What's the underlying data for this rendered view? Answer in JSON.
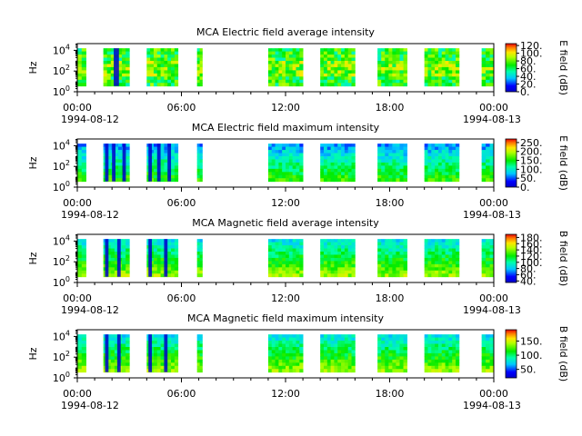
{
  "chart_data": [
    {
      "type": "heatmap",
      "title": "MCA  Electric field average intensity",
      "ylabel": "Hz",
      "y_scale": "log",
      "y_ticks": [
        {
          "pow": 0
        },
        {
          "pow": 2
        },
        {
          "pow": 4
        }
      ],
      "y_tick_base": "10",
      "x_ticks": [
        "00:00",
        "06:00",
        "12:00",
        "18:00",
        "00:00"
      ],
      "x_start_date": "1994-08-12",
      "x_end_date": "1994-08-13",
      "colorbar_label": "E field (dB)",
      "colorbar_ticks": [
        "0.",
        "20.",
        "40.",
        "60.",
        "80.",
        "100.",
        "120."
      ],
      "colorbar_range": [
        0,
        125
      ],
      "colormap": "rainbow (blue-cyan-green-yellow-red)",
      "data_intervals_hours": [
        [
          0.0,
          0.5
        ],
        [
          1.5,
          3.0
        ],
        [
          4.0,
          5.8
        ],
        [
          6.9,
          7.2
        ],
        [
          11.0,
          13.0
        ],
        [
          14.0,
          16.0
        ],
        [
          17.3,
          19.0
        ],
        [
          20.0,
          22.0
        ],
        [
          23.3,
          24.0
        ]
      ],
      "base_level": 0.55,
      "spike_intervals_hours": [
        [
          2.1,
          2.4
        ]
      ],
      "spike_color": "#0000cc"
    },
    {
      "type": "heatmap",
      "title": "MCA  Electric field maximum intensity",
      "ylabel": "Hz",
      "y_scale": "log",
      "y_ticks": [
        {
          "pow": 0
        },
        {
          "pow": 2
        },
        {
          "pow": 4
        }
      ],
      "y_tick_base": "10",
      "x_ticks": [
        "00:00",
        "06:00",
        "12:00",
        "18:00",
        "00:00"
      ],
      "x_start_date": "1994-08-12",
      "x_end_date": "1994-08-13",
      "colorbar_label": "E field (dB)",
      "colorbar_ticks": [
        "0.",
        "50.",
        "100.",
        "150.",
        "200.",
        "250."
      ],
      "colorbar_range": [
        0,
        270
      ],
      "colormap": "rainbow (blue-cyan-green-yellow-red)",
      "data_intervals_hours": [
        [
          0.0,
          0.5
        ],
        [
          1.5,
          3.0
        ],
        [
          4.0,
          5.8
        ],
        [
          6.9,
          7.2
        ],
        [
          11.0,
          13.0
        ],
        [
          14.0,
          16.0
        ],
        [
          17.3,
          19.0
        ],
        [
          20.0,
          22.0
        ],
        [
          23.3,
          24.0
        ]
      ],
      "base_level": 0.4,
      "spike_intervals_hours": [
        [
          1.6,
          1.8
        ],
        [
          2.0,
          2.2
        ],
        [
          2.6,
          2.8
        ],
        [
          4.1,
          4.3
        ],
        [
          4.6,
          4.8
        ],
        [
          5.2,
          5.4
        ]
      ],
      "spike_color": "#0000cc"
    },
    {
      "type": "heatmap",
      "title": "MCA  Magnetic field average intensity",
      "ylabel": "Hz",
      "y_scale": "log",
      "y_ticks": [
        {
          "pow": 0
        },
        {
          "pow": 2
        },
        {
          "pow": 4
        }
      ],
      "y_tick_base": "10",
      "x_ticks": [
        "00:00",
        "06:00",
        "12:00",
        "18:00",
        "00:00"
      ],
      "x_start_date": "1994-08-12",
      "x_end_date": "1994-08-13",
      "colorbar_label": "B field (dB)",
      "colorbar_ticks": [
        "40.",
        "60.",
        "80.",
        "100.",
        "120.",
        "140.",
        "160.",
        "180."
      ],
      "colorbar_range": [
        35,
        190
      ],
      "colormap": "rainbow (blue-cyan-green-yellow-red)",
      "data_intervals_hours": [
        [
          0.0,
          0.5
        ],
        [
          1.5,
          3.0
        ],
        [
          4.0,
          5.8
        ],
        [
          6.9,
          7.2
        ],
        [
          11.0,
          13.0
        ],
        [
          14.0,
          16.0
        ],
        [
          17.3,
          19.0
        ],
        [
          20.0,
          22.0
        ],
        [
          23.3,
          24.0
        ]
      ],
      "base_level": 0.5,
      "spike_intervals_hours": [
        [
          1.6,
          1.8
        ],
        [
          2.3,
          2.5
        ],
        [
          4.1,
          4.3
        ],
        [
          5.0,
          5.2
        ]
      ],
      "spike_color": "#0000cc"
    },
    {
      "type": "heatmap",
      "title": "MCA  Magnetic field maximum intensity",
      "ylabel": "Hz",
      "y_scale": "log",
      "y_ticks": [
        {
          "pow": 0
        },
        {
          "pow": 2
        },
        {
          "pow": 4
        }
      ],
      "y_tick_base": "10",
      "x_ticks": [
        "00:00",
        "06:00",
        "12:00",
        "18:00",
        "00:00"
      ],
      "x_start_date": "1994-08-12",
      "x_end_date": "1994-08-13",
      "colorbar_label": "B field (dB)",
      "colorbar_ticks": [
        "50.",
        "100.",
        "150."
      ],
      "colorbar_range": [
        20,
        190
      ],
      "colormap": "rainbow (blue-cyan-green-yellow-red)",
      "data_intervals_hours": [
        [
          0.0,
          0.5
        ],
        [
          1.5,
          3.0
        ],
        [
          4.0,
          5.8
        ],
        [
          6.9,
          7.2
        ],
        [
          11.0,
          13.0
        ],
        [
          14.0,
          16.0
        ],
        [
          17.3,
          19.0
        ],
        [
          20.0,
          22.0
        ],
        [
          23.3,
          24.0
        ]
      ],
      "base_level": 0.5,
      "spike_intervals_hours": [
        [
          1.6,
          1.8
        ],
        [
          2.3,
          2.5
        ],
        [
          4.1,
          4.3
        ],
        [
          5.0,
          5.2
        ]
      ],
      "spike_color": "#0000cc"
    }
  ]
}
